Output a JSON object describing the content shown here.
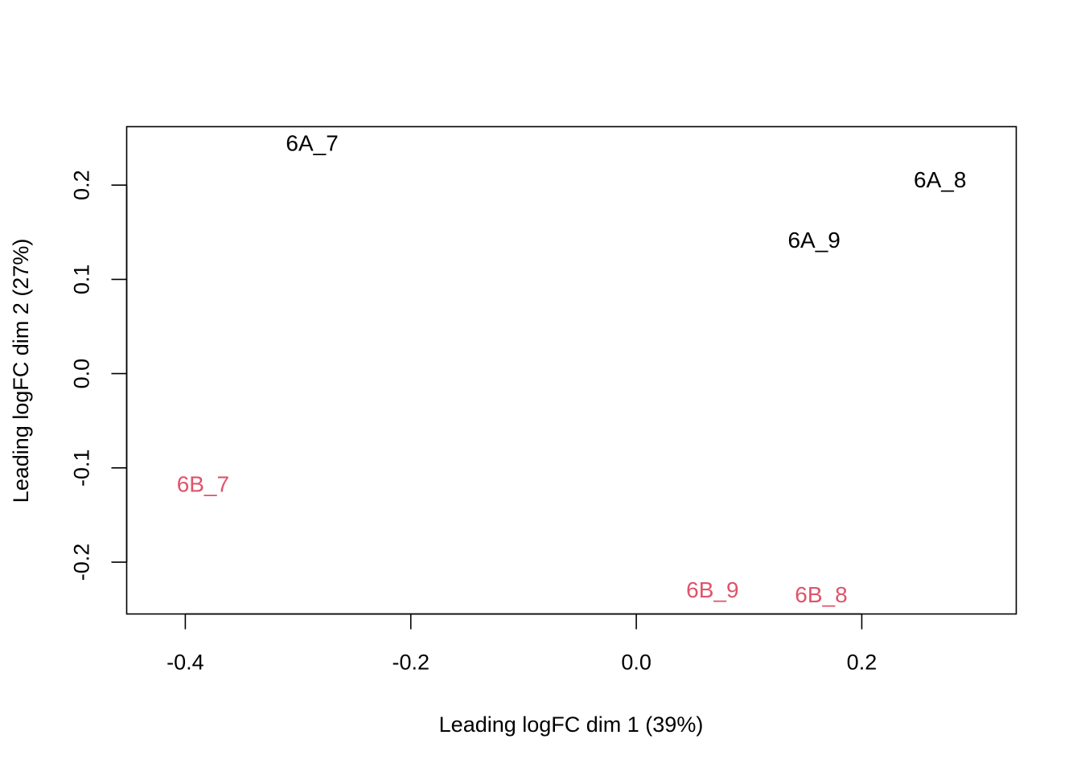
{
  "chart_data": {
    "type": "scatter",
    "title": "",
    "xlabel": "Leading logFC dim 1 (39%)",
    "ylabel": "Leading logFC dim 2 (27%)",
    "xlim": [
      -0.452,
      0.337
    ],
    "ylim": [
      -0.255,
      0.262
    ],
    "grid": false,
    "legend": "none",
    "x_ticks": [
      {
        "value": -0.4,
        "label": "-0.4"
      },
      {
        "value": -0.2,
        "label": "-0.2"
      },
      {
        "value": 0.0,
        "label": "0.0"
      },
      {
        "value": 0.2,
        "label": "0.2"
      }
    ],
    "y_ticks": [
      {
        "value": -0.2,
        "label": "-0.2"
      },
      {
        "value": -0.1,
        "label": "-0.1"
      },
      {
        "value": 0.0,
        "label": "0.0"
      },
      {
        "value": 0.1,
        "label": "0.1"
      },
      {
        "value": 0.2,
        "label": "0.2"
      }
    ],
    "points": [
      {
        "label": "6A_7",
        "x": -0.2875,
        "y": 0.245,
        "color": "#000000"
      },
      {
        "label": "6A_8",
        "x": 0.2694,
        "y": 0.206,
        "color": "#000000"
      },
      {
        "label": "6A_9",
        "x": 0.1577,
        "y": 0.142,
        "color": "#000000"
      },
      {
        "label": "6B_7",
        "x": -0.3843,
        "y": -0.117,
        "color": "#DF536B"
      },
      {
        "label": "6B_9",
        "x": 0.0676,
        "y": -0.229,
        "color": "#DF536B"
      },
      {
        "label": "6B_8",
        "x": 0.164,
        "y": -0.234,
        "color": "#DF536B"
      }
    ]
  }
}
